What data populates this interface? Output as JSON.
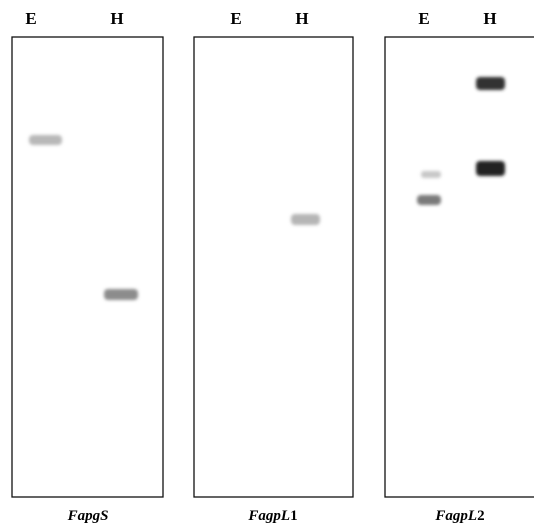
{
  "panels": [
    {
      "lanes": [
        "E",
        "H"
      ],
      "caption": {
        "gene": "FapgS"
      }
    },
    {
      "lanes": [
        "E",
        "H"
      ],
      "caption": {
        "gene": "FagpL",
        "suffix": "1"
      }
    },
    {
      "lanes": [
        "E",
        "H"
      ],
      "caption": {
        "gene": "FagpL",
        "suffix": "2"
      }
    }
  ]
}
